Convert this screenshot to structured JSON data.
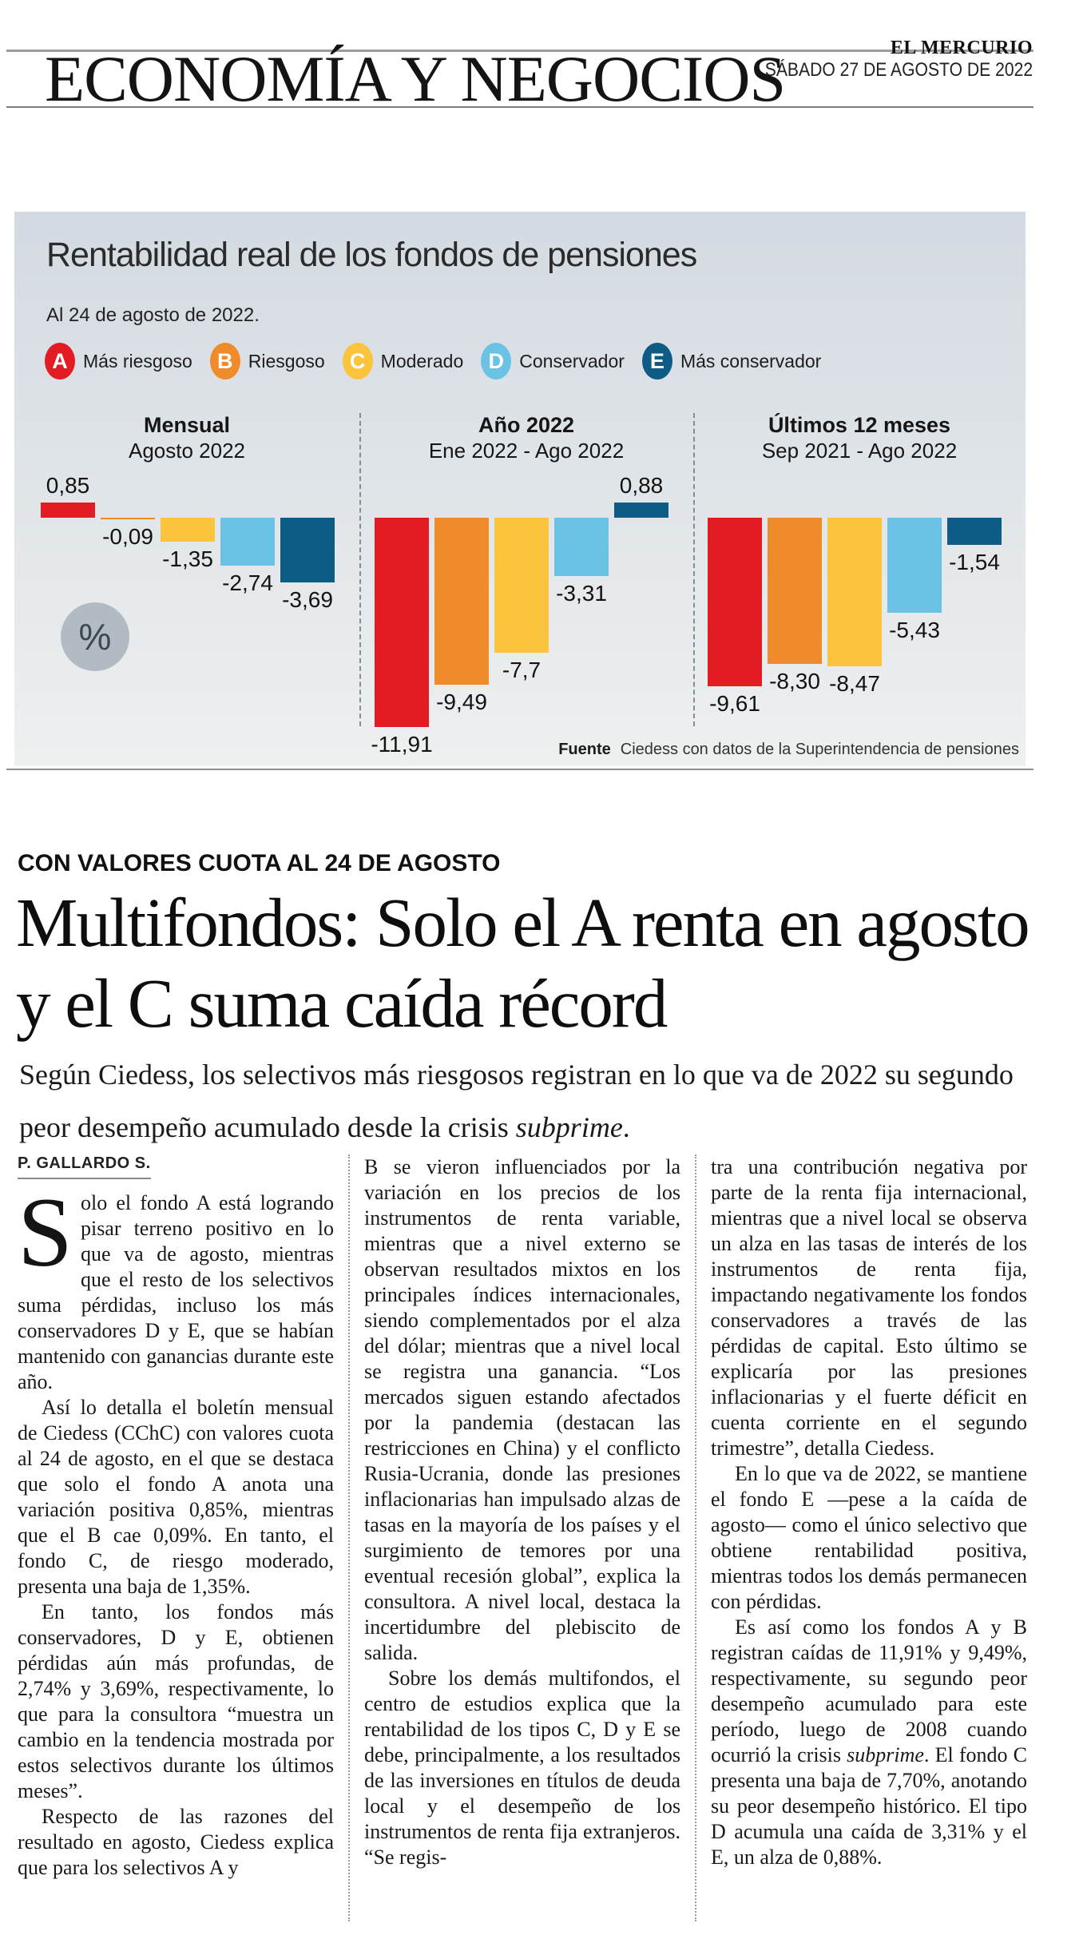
{
  "masthead": {
    "section": "ECONOMÍA Y NEGOCIOS",
    "newspaper": "EL MERCURIO",
    "date": "SÁBADO 27 DE AGOSTO DE 2022"
  },
  "chart": {
    "title": "Rentabilidad real de los fondos de pensiones",
    "subtitle": "Al 24 de agosto de 2022.",
    "unit_badge": "%",
    "source_label": "Fuente",
    "source": "Ciedess con datos de la Superintendencia de pensiones",
    "legend": [
      {
        "letter": "A",
        "label": "Más riesgoso",
        "color": "#e31c23"
      },
      {
        "letter": "B",
        "label": "Riesgoso",
        "color": "#ef8b2a"
      },
      {
        "letter": "C",
        "label": "Moderado",
        "color": "#fbc43d"
      },
      {
        "letter": "D",
        "label": "Conservador",
        "color": "#6ac3e5"
      },
      {
        "letter": "E",
        "label": "Más conservador",
        "color": "#0e5b86"
      }
    ]
  },
  "chart_data": {
    "type": "bar",
    "unit": "%",
    "fund_labels": [
      "A",
      "B",
      "C",
      "D",
      "E"
    ],
    "series_colors": [
      "#e31c23",
      "#ef8b2a",
      "#fbc43d",
      "#6ac3e5",
      "#0e5b86"
    ],
    "groups": [
      {
        "title": "Mensual",
        "period": "Agosto 2022",
        "values": [
          0.85,
          -0.09,
          -1.35,
          -2.74,
          -3.69
        ],
        "display": [
          "0,85",
          "-0,09",
          "-1,35",
          "-2,74",
          "-3,69"
        ]
      },
      {
        "title": "Año 2022",
        "period": "Ene 2022 - Ago 2022",
        "values": [
          -11.91,
          -9.49,
          -7.7,
          -3.31,
          0.88
        ],
        "display": [
          "-11,91",
          "-9,49",
          "-7,7",
          "-3,31",
          "0,88"
        ]
      },
      {
        "title": "Últimos 12 meses",
        "period": "Sep 2021 - Ago 2022",
        "values": [
          -9.61,
          -8.3,
          -8.47,
          -5.43,
          -1.54
        ],
        "display": [
          "-9,61",
          "-8,30",
          "-8,47",
          "-5,43",
          "-1,54"
        ]
      }
    ],
    "ylim": [
      -12.5,
      1.5
    ],
    "grid": false,
    "legend_position": "top"
  },
  "article": {
    "kicker": "CON VALORES CUOTA AL 24 DE AGOSTO",
    "headline": "Multifondos: Solo el A renta en agosto y el C suma caída récord",
    "deck": {
      "before": "Según Ciedess, los selectivos más riesgosos registran en lo que va de 2022 su segundo peor desempeño acumulado desde la crisis ",
      "italic": "subprime",
      "after": "."
    },
    "byline": "P. GALLARDO S.",
    "dropcap": "S",
    "col1": {
      "p1_rest": "olo el fondo A está logrando pisar terreno positivo en lo que va de agosto, mientras que el resto de los selectivos suma pérdidas, incluso los más conservadores D y E, que se habían mantenido con ganancias durante este año.",
      "p2": "Así lo detalla el boletín mensual de Ciedess (CChC) con valores cuota al 24 de agosto, en el que se destaca que solo el fondo A anota una variación positiva 0,85%, mientras que el B cae 0,09%. En tanto, el fondo C, de riesgo moderado, presenta una baja de 1,35%.",
      "p3": "En tanto, los fondos más conservadores, D y E, obtienen pérdidas aún más profundas, de 2,74% y 3,69%, respectivamente, lo que para la consultora “muestra un cambio en la tendencia mostrada por estos selectivos durante los últimos meses”.",
      "p4": "Respecto de las razones del resultado en agosto, Ciedess explica que para los selectivos A y"
    },
    "col2": {
      "p1": "B se vieron influenciados por la variación en los precios de los instrumentos de renta variable, mientras que a nivel externo se observan resultados mixtos en los principales índices internacionales, siendo complementados por el alza del dólar; mientras que a nivel local se registra una ganancia. “Los mercados siguen estando afectados por la pandemia (destacan las restricciones en China) y el conflicto Rusia-Ucrania, donde las presiones inflacionarias han impulsado alzas de tasas en la mayoría de los países y el surgimiento de temores por una eventual recesión global”, explica la consultora. A nivel local, destaca la incertidumbre del plebiscito de salida.",
      "p2": "Sobre los demás multifondos, el centro de estudios explica que la rentabilidad de los tipos C, D y E se debe, principalmente, a los resultados de las inversiones en títulos de deuda local y el desempeño de los instrumentos de renta fija extranjeros. “Se regis-"
    },
    "col3": {
      "p1": "tra una contribución negativa por parte de la renta fija internacional, mientras que a nivel local se observa un alza en las tasas de interés de los instrumentos de renta fija, impactando negativamente los fondos conservadores a través de las pérdidas de capital. Esto último se explicaría por las presiones inflacionarias y el fuerte déficit en cuenta corriente en el segundo trimestre”, detalla Ciedess.",
      "p2": "En lo que va de 2022, se mantiene el fondo E —pese a la caída de agosto— como el único selectivo que obtiene rentabilidad positiva, mientras todos los demás permanecen con pérdidas.",
      "p3": {
        "before": "Es así como los fondos A y B registran caídas de 11,91% y 9,49%, respectivamente, su segundo peor desempeño acumulado para este período, luego de 2008 cuando ocurrió la crisis ",
        "italic": "subprime",
        "after": ". El fondo C presenta una baja de 7,70%, anotando su peor desempeño histórico. El tipo D acumula una caída de 3,31% y el E, un alza de 0,88%."
      }
    }
  }
}
